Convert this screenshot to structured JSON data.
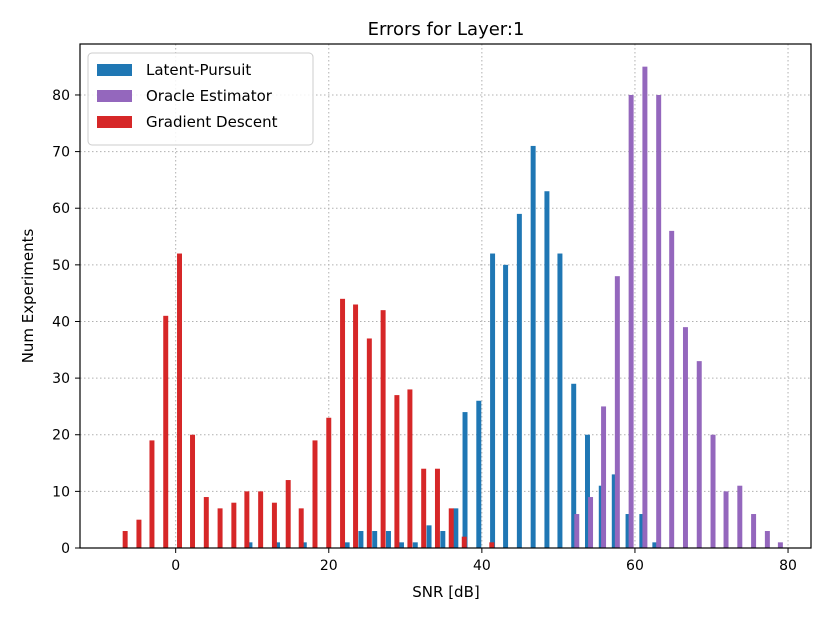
{
  "chart_data": {
    "type": "bar",
    "title": "Errors for Layer:1",
    "xlabel": "SNR [dB]",
    "ylabel": "Num Experiments",
    "xlim": [
      -12.5,
      83
    ],
    "ylim": [
      0,
      89
    ],
    "xticks": [
      0,
      20,
      40,
      60,
      80
    ],
    "yticks": [
      0,
      10,
      20,
      30,
      40,
      50,
      60,
      70,
      80
    ],
    "grid": true,
    "legend_position": "top-left",
    "bar_width_units": 0.65,
    "series": [
      {
        "name": "Latent-Pursuit",
        "color": "#1f77b4",
        "x": [
          9.7,
          13.3,
          16.8,
          22.4,
          24.2,
          26.0,
          27.8,
          29.5,
          31.3,
          33.1,
          34.9,
          36.6,
          37.8,
          39.6,
          41.4,
          43.1,
          44.9,
          46.7,
          48.5,
          50.2,
          52.0,
          53.8,
          55.6,
          57.3,
          59.1,
          60.9,
          62.6
        ],
        "values": [
          1,
          1,
          1,
          1,
          3,
          3,
          3,
          1,
          1,
          4,
          3,
          7,
          24,
          26,
          52,
          50,
          59,
          71,
          63,
          52,
          29,
          20,
          11,
          13,
          6,
          6,
          1
        ]
      },
      {
        "name": "Oracle Estimator",
        "color": "#9467bd",
        "x": [
          52.4,
          54.2,
          55.9,
          57.7,
          59.5,
          61.3,
          63.1,
          64.8,
          66.6,
          68.4,
          70.2,
          71.9,
          73.7,
          75.5,
          77.3,
          79.0
        ],
        "values": [
          6,
          9,
          25,
          48,
          80,
          85,
          80,
          56,
          39,
          33,
          20,
          10,
          11,
          6,
          3,
          1
        ]
      },
      {
        "name": "Gradient Descent",
        "color": "#d62728",
        "x": [
          -6.6,
          -4.8,
          -3.1,
          -1.3,
          0.5,
          2.2,
          4.0,
          5.8,
          7.6,
          9.3,
          11.1,
          12.9,
          14.7,
          16.4,
          18.2,
          20.0,
          21.8,
          23.5,
          25.3,
          27.1,
          28.9,
          30.6,
          32.4,
          34.2,
          36.0,
          37.7,
          39.5,
          41.3
        ],
        "values": [
          3,
          5,
          19,
          41,
          52,
          20,
          9,
          7,
          8,
          10,
          10,
          8,
          12,
          7,
          19,
          23,
          44,
          43,
          37,
          42,
          27,
          28,
          14,
          14,
          7,
          2,
          0,
          1
        ]
      }
    ]
  }
}
